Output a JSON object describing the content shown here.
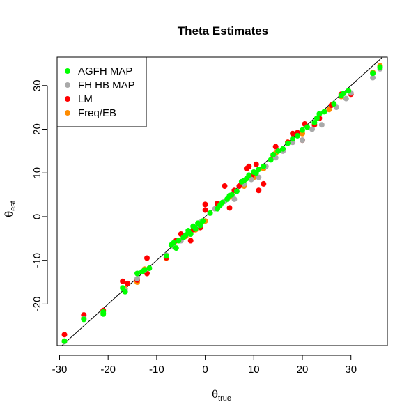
{
  "chart_data": {
    "type": "scatter",
    "title": "Theta Estimates",
    "xlabel": {
      "symbol": "θ",
      "subscript": "true"
    },
    "ylabel": {
      "symbol": "θ",
      "subscript": "est"
    },
    "xlim": [
      -30.5,
      37.5
    ],
    "ylim": [
      -29.5,
      36.5
    ],
    "xticks": [
      -30,
      -20,
      -10,
      0,
      10,
      20,
      30
    ],
    "yticks": [
      -20,
      -10,
      0,
      10,
      20,
      30
    ],
    "grid": false,
    "legend_position": "top-left",
    "reference_line": {
      "type": "identity",
      "slope": 1,
      "intercept": 0,
      "color": "#000000"
    },
    "series": [
      {
        "name": "Freq/EB",
        "color": "#ff8c00",
        "points": [
          [
            -29,
            -28.5
          ],
          [
            -25,
            -23.2
          ],
          [
            -21,
            -22.1
          ],
          [
            -16.5,
            -16.5
          ],
          [
            -14,
            -15
          ],
          [
            -12.5,
            -12
          ],
          [
            -8,
            -9.5
          ],
          [
            -6.5,
            -6.2
          ],
          [
            -4,
            -4.5
          ],
          [
            -2,
            -3
          ],
          [
            0,
            -1
          ],
          [
            3,
            2.5
          ],
          [
            5,
            4.5
          ],
          [
            8,
            7
          ],
          [
            10,
            9
          ],
          [
            12,
            11
          ],
          [
            14.5,
            14.5
          ],
          [
            17,
            17
          ],
          [
            20,
            19
          ],
          [
            23,
            22.5
          ],
          [
            25.5,
            24.5
          ],
          [
            28,
            27.5
          ],
          [
            34.5,
            33
          ],
          [
            36,
            34.5
          ]
        ]
      },
      {
        "name": "LM",
        "color": "#ff0000",
        "points": [
          [
            -29,
            -27
          ],
          [
            -25,
            -22.5
          ],
          [
            -21,
            -21.5
          ],
          [
            -17,
            -14.8
          ],
          [
            -16,
            -15.3
          ],
          [
            -14,
            -14.5
          ],
          [
            -12,
            -9.5
          ],
          [
            -12,
            -13
          ],
          [
            -8,
            -9.4
          ],
          [
            -6,
            -5.5
          ],
          [
            -5,
            -4
          ],
          [
            -3,
            -5.5
          ],
          [
            -2.5,
            -3
          ],
          [
            -1,
            -2.5
          ],
          [
            0,
            1.5
          ],
          [
            0,
            2.8
          ],
          [
            2.5,
            3
          ],
          [
            4,
            7
          ],
          [
            5,
            2
          ],
          [
            6,
            6
          ],
          [
            7,
            7
          ],
          [
            8.5,
            11
          ],
          [
            9,
            11.5
          ],
          [
            9.5,
            9
          ],
          [
            10,
            10
          ],
          [
            10.5,
            12
          ],
          [
            11,
            6
          ],
          [
            12,
            7.5
          ],
          [
            14,
            14
          ],
          [
            14.5,
            16
          ],
          [
            17,
            17
          ],
          [
            18,
            19
          ],
          [
            19,
            19.2
          ],
          [
            20,
            17.5
          ],
          [
            20.5,
            21.2
          ],
          [
            22.5,
            21
          ],
          [
            23.5,
            22.5
          ],
          [
            26,
            25.5
          ],
          [
            28,
            28
          ],
          [
            30,
            28
          ]
        ]
      },
      {
        "name": "FH HB MAP",
        "color": "#a9a9a9",
        "points": [
          [
            -29,
            -28.6
          ],
          [
            -25,
            -23.4
          ],
          [
            -21,
            -22.2
          ],
          [
            -16.5,
            -16.8
          ],
          [
            -14,
            -14.2
          ],
          [
            -12.5,
            -12.3
          ],
          [
            -8,
            -8.8
          ],
          [
            -6.5,
            -6.8
          ],
          [
            -5,
            -5.5
          ],
          [
            -3.5,
            -3.8
          ],
          [
            -2,
            -2.5
          ],
          [
            -1,
            -1.3
          ],
          [
            2,
            1.8
          ],
          [
            4,
            3.5
          ],
          [
            6,
            4
          ],
          [
            8,
            7.5
          ],
          [
            9.5,
            8.5
          ],
          [
            11,
            9
          ],
          [
            12.5,
            11.5
          ],
          [
            14.5,
            13.5
          ],
          [
            16,
            15
          ],
          [
            18,
            17
          ],
          [
            20,
            17.5
          ],
          [
            22,
            20
          ],
          [
            24,
            21
          ],
          [
            27,
            25
          ],
          [
            29,
            27
          ],
          [
            30,
            28.3
          ],
          [
            34.5,
            31.8
          ],
          [
            36,
            33.8
          ]
        ]
      },
      {
        "name": "AGFH MAP",
        "color": "#00ff00",
        "points": [
          [
            -29,
            -28.5
          ],
          [
            -25,
            -23.5
          ],
          [
            -21,
            -22.3
          ],
          [
            -21,
            -21.8
          ],
          [
            -17,
            -16.3
          ],
          [
            -16.5,
            -17.2
          ],
          [
            -14,
            -13
          ],
          [
            -13,
            -12.6
          ],
          [
            -12.5,
            -12.2
          ],
          [
            -11.5,
            -11.8
          ],
          [
            -8,
            -9
          ],
          [
            -7,
            -6.5
          ],
          [
            -6.5,
            -6
          ],
          [
            -6,
            -7.2
          ],
          [
            -5.5,
            -5.5
          ],
          [
            -4.5,
            -4.8
          ],
          [
            -4,
            -4.2
          ],
          [
            -3.5,
            -3.2
          ],
          [
            -3,
            -4
          ],
          [
            -2.5,
            -2.2
          ],
          [
            -2,
            -2.8
          ],
          [
            -1.5,
            -1.5
          ],
          [
            -1,
            -2
          ],
          [
            -0.5,
            -1
          ],
          [
            1,
            0.8
          ],
          [
            2.5,
            1.8
          ],
          [
            3,
            2.5
          ],
          [
            3.5,
            3.2
          ],
          [
            4.5,
            4
          ],
          [
            5,
            4.8
          ],
          [
            5.5,
            5
          ],
          [
            6.5,
            5.8
          ],
          [
            7.5,
            8
          ],
          [
            8,
            8.3
          ],
          [
            8.5,
            8.7
          ],
          [
            9,
            9.5
          ],
          [
            10,
            10.2
          ],
          [
            10.5,
            10
          ],
          [
            11,
            10.8
          ],
          [
            12,
            11.5
          ],
          [
            13.5,
            13
          ],
          [
            14,
            14.2
          ],
          [
            15,
            15
          ],
          [
            16,
            15.5
          ],
          [
            17,
            16.8
          ],
          [
            18,
            17.8
          ],
          [
            19,
            18.5
          ],
          [
            20,
            19.8
          ],
          [
            21,
            20.5
          ],
          [
            22.5,
            21.5
          ],
          [
            23,
            22.5
          ],
          [
            23.5,
            23.5
          ],
          [
            24.5,
            24
          ],
          [
            26.5,
            25.8
          ],
          [
            28,
            27.7
          ],
          [
            28.5,
            28.2
          ],
          [
            29.5,
            28.8
          ],
          [
            34.5,
            32.8
          ],
          [
            36,
            34.2
          ]
        ]
      }
    ],
    "legend": [
      {
        "label": "AGFH MAP",
        "color": "#00ff00"
      },
      {
        "label": "FH HB MAP",
        "color": "#a9a9a9"
      },
      {
        "label": "LM",
        "color": "#ff0000"
      },
      {
        "label": "Freq/EB",
        "color": "#ff8c00"
      }
    ]
  }
}
